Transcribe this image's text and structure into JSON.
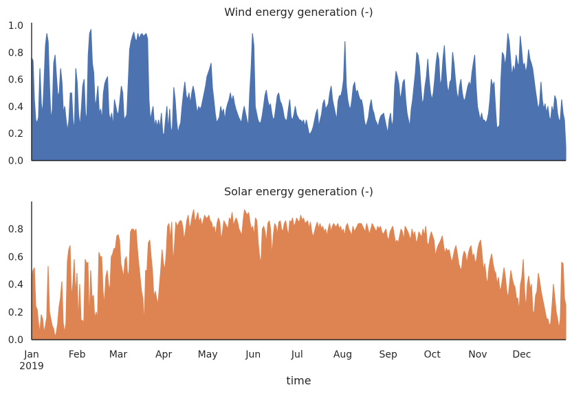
{
  "chart_data": [
    {
      "type": "area",
      "title": "Wind energy generation (-)",
      "color": "#4c72b0",
      "ylim": [
        0,
        1.0
      ],
      "yticks": [
        0.0,
        0.2,
        0.4,
        0.6,
        0.8,
        1.0
      ],
      "ytick_labels": [
        "0.0",
        "0.2",
        "0.4",
        "0.6",
        "0.8",
        "1.0"
      ],
      "resolution": "daily (approx. daily maximum of hourly series)",
      "x_start": "2019-01-01",
      "x_end": "2019-12-31",
      "values": [
        0.76,
        0.74,
        0.45,
        0.3,
        0.28,
        0.32,
        0.68,
        0.42,
        0.35,
        0.58,
        0.85,
        0.94,
        0.88,
        0.55,
        0.3,
        0.38,
        0.72,
        0.78,
        0.62,
        0.48,
        0.5,
        0.68,
        0.58,
        0.35,
        0.4,
        0.3,
        0.22,
        0.3,
        0.5,
        0.5,
        0.3,
        0.22,
        0.68,
        0.58,
        0.35,
        0.25,
        0.38,
        0.55,
        0.6,
        0.35,
        0.3,
        0.78,
        0.94,
        0.97,
        0.72,
        0.65,
        0.4,
        0.45,
        0.55,
        0.35,
        0.38,
        0.3,
        0.5,
        0.57,
        0.6,
        0.62,
        0.35,
        0.3,
        0.35,
        0.25,
        0.45,
        0.4,
        0.35,
        0.35,
        0.45,
        0.55,
        0.5,
        0.3,
        0.32,
        0.34,
        0.58,
        0.82,
        0.88,
        0.92,
        0.95,
        0.9,
        0.88,
        0.94,
        0.9,
        0.93,
        0.94,
        0.92,
        0.93,
        0.94,
        0.9,
        0.45,
        0.3,
        0.35,
        0.4,
        0.25,
        0.3,
        0.25,
        0.3,
        0.24,
        0.35,
        0.2,
        0.19,
        0.3,
        0.4,
        0.22,
        0.38,
        0.2,
        0.25,
        0.54,
        0.45,
        0.3,
        0.2,
        0.25,
        0.28,
        0.4,
        0.5,
        0.58,
        0.48,
        0.45,
        0.5,
        0.42,
        0.5,
        0.55,
        0.5,
        0.42,
        0.35,
        0.4,
        0.38,
        0.4,
        0.45,
        0.5,
        0.55,
        0.62,
        0.65,
        0.68,
        0.72,
        0.54,
        0.45,
        0.35,
        0.28,
        0.3,
        0.32,
        0.4,
        0.35,
        0.38,
        0.3,
        0.38,
        0.42,
        0.45,
        0.5,
        0.44,
        0.48,
        0.42,
        0.38,
        0.35,
        0.32,
        0.3,
        0.28,
        0.35,
        0.4,
        0.35,
        0.3,
        0.25,
        0.5,
        0.68,
        0.94,
        0.85,
        0.4,
        0.35,
        0.3,
        0.28,
        0.28,
        0.33,
        0.4,
        0.48,
        0.52,
        0.45,
        0.4,
        0.42,
        0.35,
        0.3,
        0.32,
        0.4,
        0.48,
        0.5,
        0.44,
        0.42,
        0.38,
        0.32,
        0.3,
        0.3,
        0.38,
        0.45,
        0.32,
        0.3,
        0.34,
        0.4,
        0.34,
        0.32,
        0.3,
        0.3,
        0.28,
        0.3,
        0.25,
        0.3,
        0.25,
        0.2,
        0.2,
        0.22,
        0.25,
        0.3,
        0.35,
        0.38,
        0.25,
        0.3,
        0.34,
        0.42,
        0.45,
        0.38,
        0.4,
        0.42,
        0.5,
        0.55,
        0.45,
        0.4,
        0.35,
        0.3,
        0.44,
        0.48,
        0.48,
        0.52,
        0.6,
        0.88,
        0.55,
        0.45,
        0.4,
        0.38,
        0.45,
        0.55,
        0.58,
        0.5,
        0.52,
        0.48,
        0.45,
        0.45,
        0.4,
        0.3,
        0.25,
        0.28,
        0.32,
        0.4,
        0.45,
        0.38,
        0.35,
        0.3,
        0.28,
        0.25,
        0.3,
        0.33,
        0.34,
        0.35,
        0.3,
        0.25,
        0.2,
        0.3,
        0.35,
        0.25,
        0.3,
        0.55,
        0.66,
        0.62,
        0.57,
        0.45,
        0.5,
        0.58,
        0.6,
        0.45,
        0.35,
        0.3,
        0.25,
        0.38,
        0.45,
        0.55,
        0.65,
        0.8,
        0.78,
        0.7,
        0.55,
        0.42,
        0.45,
        0.55,
        0.62,
        0.75,
        0.6,
        0.5,
        0.45,
        0.5,
        0.6,
        0.72,
        0.8,
        0.75,
        0.55,
        0.6,
        0.75,
        0.85,
        0.68,
        0.55,
        0.5,
        0.58,
        0.6,
        0.8,
        0.72,
        0.6,
        0.5,
        0.45,
        0.55,
        0.6,
        0.5,
        0.45,
        0.45,
        0.5,
        0.55,
        0.58,
        0.55,
        0.65,
        0.72,
        0.78,
        0.55,
        0.4,
        0.35,
        0.3,
        0.35,
        0.3,
        0.3,
        0.28,
        0.3,
        0.35,
        0.45,
        0.6,
        0.55,
        0.58,
        0.4,
        0.24,
        0.25,
        0.26,
        0.6,
        0.8,
        0.78,
        0.7,
        0.78,
        0.94,
        0.88,
        0.75,
        0.62,
        0.7,
        0.65,
        0.78,
        0.72,
        0.7,
        0.92,
        0.82,
        0.7,
        0.72,
        0.65,
        0.7,
        0.82,
        0.75,
        0.72,
        0.68,
        0.6,
        0.52,
        0.45,
        0.38,
        0.42,
        0.58,
        0.45,
        0.38,
        0.42,
        0.35,
        0.4,
        0.32,
        0.3,
        0.4,
        0.35,
        0.48,
        0.45,
        0.35,
        0.3,
        0.3,
        0.45,
        0.35,
        0.3,
        0.1
      ]
    },
    {
      "type": "area",
      "title": "Solar energy generation (-)",
      "color": "#dd8452",
      "ylim": [
        0,
        1.0
      ],
      "yticks": [
        0.0,
        0.2,
        0.4,
        0.6,
        0.8
      ],
      "ytick_labels": [
        "0.0",
        "0.2",
        "0.4",
        "0.6",
        "0.8"
      ],
      "resolution": "daily (approx. daily maximum of hourly series)",
      "x_start": "2019-01-01",
      "x_end": "2019-12-31",
      "x_ticks": [
        "Jan\n2019",
        "Feb",
        "Mar",
        "Apr",
        "May",
        "Jun",
        "Jul",
        "Aug",
        "Sep",
        "Oct",
        "Nov",
        "Dec"
      ],
      "xlabel": "time",
      "values": [
        0.44,
        0.5,
        0.52,
        0.24,
        0.22,
        0.12,
        0.05,
        0.18,
        0.15,
        0.05,
        0.1,
        0.16,
        0.53,
        0.2,
        0.15,
        0.1,
        0.08,
        0.02,
        0.05,
        0.12,
        0.24,
        0.3,
        0.42,
        0.12,
        0.05,
        0.12,
        0.56,
        0.65,
        0.68,
        0.3,
        0.4,
        0.58,
        0.32,
        0.48,
        0.12,
        0.4,
        0.14,
        0.14,
        0.12,
        0.58,
        0.55,
        0.56,
        0.12,
        0.5,
        0.3,
        0.32,
        0.15,
        0.2,
        0.15,
        0.63,
        0.6,
        0.6,
        0.35,
        0.25,
        0.45,
        0.5,
        0.4,
        0.35,
        0.6,
        0.62,
        0.66,
        0.66,
        0.75,
        0.76,
        0.72,
        0.55,
        0.5,
        0.45,
        0.58,
        0.6,
        0.45,
        0.5,
        0.78,
        0.8,
        0.8,
        0.78,
        0.8,
        0.66,
        0.55,
        0.45,
        0.35,
        0.3,
        0.1,
        0.5,
        0.5,
        0.7,
        0.72,
        0.6,
        0.5,
        0.3,
        0.35,
        0.3,
        0.25,
        0.38,
        0.5,
        0.65,
        0.55,
        0.5,
        0.62,
        0.82,
        0.84,
        0.72,
        0.85,
        0.55,
        0.68,
        0.85,
        0.82,
        0.84,
        0.86,
        0.86,
        0.82,
        0.72,
        0.78,
        0.86,
        0.9,
        0.8,
        0.84,
        0.9,
        0.94,
        0.85,
        0.88,
        0.92,
        0.85,
        0.88,
        0.82,
        0.86,
        0.9,
        0.88,
        0.88,
        0.9,
        0.86,
        0.85,
        0.8,
        0.82,
        0.75,
        0.84,
        0.88,
        0.85,
        0.72,
        0.78,
        0.86,
        0.84,
        0.82,
        0.8,
        0.88,
        0.86,
        0.92,
        0.82,
        0.86,
        0.88,
        0.85,
        0.8,
        0.78,
        0.75,
        0.86,
        0.94,
        0.92,
        0.9,
        0.92,
        0.85,
        0.8,
        0.82,
        0.75,
        0.88,
        0.86,
        0.7,
        0.6,
        0.55,
        0.8,
        0.82,
        0.78,
        0.7,
        0.84,
        0.86,
        0.8,
        0.6,
        0.75,
        0.84,
        0.82,
        0.76,
        0.85,
        0.86,
        0.8,
        0.78,
        0.84,
        0.86,
        0.8,
        0.75,
        0.86,
        0.85,
        0.88,
        0.82,
        0.84,
        0.88,
        0.86,
        0.85,
        0.9,
        0.86,
        0.88,
        0.84,
        0.85,
        0.86,
        0.8,
        0.85,
        0.78,
        0.74,
        0.78,
        0.82,
        0.85,
        0.8,
        0.84,
        0.8,
        0.82,
        0.78,
        0.8,
        0.75,
        0.8,
        0.84,
        0.78,
        0.82,
        0.84,
        0.82,
        0.82,
        0.84,
        0.8,
        0.82,
        0.78,
        0.8,
        0.75,
        0.82,
        0.84,
        0.8,
        0.78,
        0.75,
        0.82,
        0.78,
        0.8,
        0.82,
        0.84,
        0.84,
        0.84,
        0.82,
        0.8,
        0.78,
        0.84,
        0.8,
        0.76,
        0.8,
        0.84,
        0.82,
        0.8,
        0.78,
        0.82,
        0.8,
        0.82,
        0.78,
        0.76,
        0.78,
        0.8,
        0.74,
        0.72,
        0.78,
        0.8,
        0.82,
        0.76,
        0.7,
        0.72,
        0.7,
        0.75,
        0.8,
        0.78,
        0.72,
        0.82,
        0.8,
        0.78,
        0.75,
        0.72,
        0.8,
        0.75,
        0.78,
        0.7,
        0.72,
        0.78,
        0.76,
        0.74,
        0.8,
        0.75,
        0.82,
        0.7,
        0.68,
        0.74,
        0.78,
        0.75,
        0.72,
        0.6,
        0.65,
        0.68,
        0.7,
        0.72,
        0.75,
        0.68,
        0.62,
        0.66,
        0.64,
        0.65,
        0.6,
        0.56,
        0.6,
        0.65,
        0.68,
        0.62,
        0.55,
        0.52,
        0.5,
        0.6,
        0.64,
        0.62,
        0.55,
        0.62,
        0.66,
        0.68,
        0.6,
        0.62,
        0.55,
        0.58,
        0.66,
        0.7,
        0.72,
        0.62,
        0.5,
        0.55,
        0.45,
        0.4,
        0.52,
        0.58,
        0.62,
        0.55,
        0.5,
        0.48,
        0.4,
        0.45,
        0.35,
        0.38,
        0.45,
        0.52,
        0.45,
        0.35,
        0.3,
        0.4,
        0.5,
        0.44,
        0.4,
        0.38,
        0.3,
        0.3,
        0.2,
        0.4,
        0.45,
        0.58,
        0.35,
        0.22,
        0.4,
        0.46,
        0.36,
        0.4,
        0.2,
        0.2,
        0.32,
        0.35,
        0.48,
        0.42,
        0.35,
        0.3,
        0.25,
        0.2,
        0.15,
        0.15,
        0.1,
        0.12,
        0.25,
        0.4,
        0.3,
        0.2,
        0.15,
        0.08,
        0.15,
        0.56,
        0.55,
        0.3,
        0.25
      ]
    }
  ]
}
